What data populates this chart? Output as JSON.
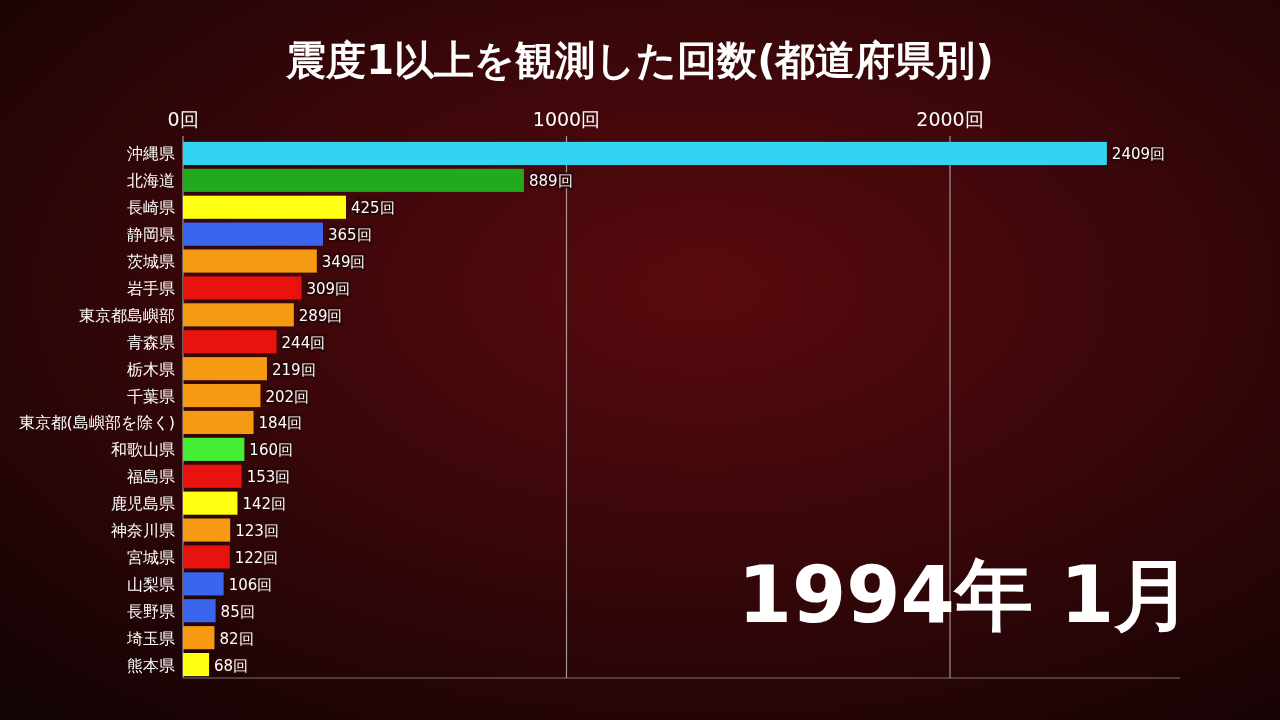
{
  "chart_data": {
    "type": "bar",
    "orientation": "horizontal",
    "title": "震度1以上を観測した回数(都道府県別)",
    "categories": [
      "沖縄県",
      "北海道",
      "長崎県",
      "静岡県",
      "茨城県",
      "岩手県",
      "東京都島嶼部",
      "青森県",
      "栃木県",
      "千葉県",
      "東京都(島嶼部を除く)",
      "和歌山県",
      "福島県",
      "鹿児島県",
      "神奈川県",
      "宮城県",
      "山梨県",
      "長野県",
      "埼玉県",
      "熊本県"
    ],
    "values": [
      2409,
      889,
      425,
      365,
      349,
      309,
      289,
      244,
      219,
      202,
      184,
      160,
      153,
      142,
      123,
      122,
      106,
      85,
      82,
      68
    ],
    "value_labels": [
      "2409回",
      "889回",
      "425回",
      "365回",
      "349回",
      "309回",
      "289回",
      "244回",
      "219回",
      "202回",
      "184回",
      "160回",
      "153回",
      "142回",
      "123回",
      "122回",
      "106回",
      "85回",
      "82回",
      "68回"
    ],
    "colors": [
      "#33d4f2",
      "#22aa1e",
      "#ffff11",
      "#3a66ee",
      "#f59a12",
      "#e8120e",
      "#f59a12",
      "#e8120e",
      "#f59a12",
      "#f59a12",
      "#f59a12",
      "#44ee33",
      "#e8120e",
      "#ffff11",
      "#f59a12",
      "#e8120e",
      "#3a66ee",
      "#3a66ee",
      "#f59a12",
      "#ffff11"
    ],
    "xlim": [
      0,
      2600
    ],
    "xticks": [
      {
        "value": 0,
        "label": "0回"
      },
      {
        "value": 1000,
        "label": "1000回"
      },
      {
        "value": 2000,
        "label": "2000回"
      }
    ],
    "grid": "x",
    "annotations": [
      "1994年 1月"
    ]
  }
}
